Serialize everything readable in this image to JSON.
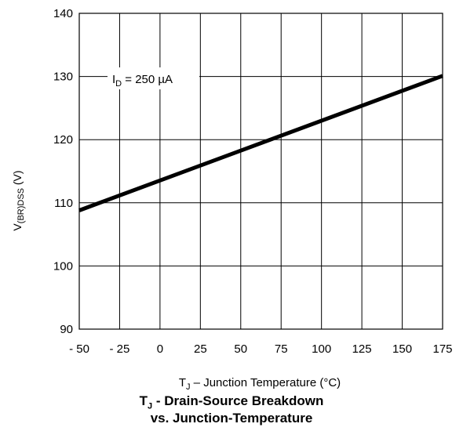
{
  "chart_data": {
    "type": "line",
    "title_main": "T",
    "title_main_sub": "J",
    "title_rest": " - Drain-Source Breakdown",
    "title_line2": "vs. Junction-Temperature",
    "ylabel_main": "V",
    "ylabel_sub": "(BR)DSS",
    "ylabel_unit": " (V)",
    "xlabel_main": "T",
    "xlabel_sub": "J",
    "xlabel_rest": "  –  Junction Temperature (°C)",
    "annotation_main": "I",
    "annotation_sub": "D",
    "annotation_rest": " = 250  µA",
    "xlim": [
      -50,
      175
    ],
    "ylim": [
      90,
      140
    ],
    "xticks": [
      -50,
      -25,
      0,
      25,
      50,
      75,
      100,
      125,
      150,
      175
    ],
    "xtick_labels": [
      "- 50",
      "- 25",
      "0",
      "25",
      "50",
      "75",
      "100",
      "125",
      "150",
      "175"
    ],
    "yticks": [
      90,
      100,
      110,
      120,
      130,
      140
    ],
    "ytick_labels": [
      "90",
      "100",
      "110",
      "120",
      "130",
      "140"
    ],
    "grid": true,
    "series": [
      {
        "x": [
          -50,
          175
        ],
        "y": [
          108.8,
          130.1
        ]
      }
    ],
    "colors": {
      "line": "#000000",
      "grid": "#000000"
    }
  }
}
